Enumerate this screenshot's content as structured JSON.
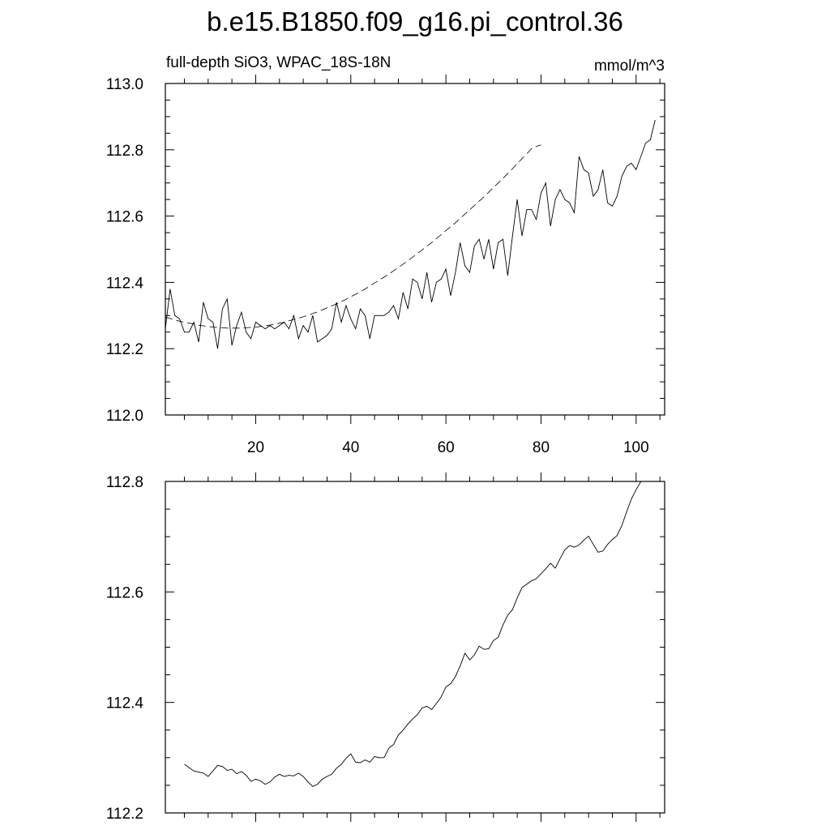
{
  "figure": {
    "title": "b.e15.B1850.f09_g16.pi_control.36"
  },
  "chart_data": [
    {
      "type": "line",
      "subtitle_left": "full-depth SiO3, WPAC_18S-18N",
      "subtitle_right": "mmol/m^3",
      "xlim": [
        1,
        106
      ],
      "ylim": [
        112.0,
        113.0
      ],
      "x_ticks": [
        20,
        40,
        60,
        80,
        100
      ],
      "y_ticks": [
        112.0,
        112.2,
        112.4,
        112.6,
        112.8,
        113.0
      ],
      "y_tick_labels": [
        "112.0",
        "112.2",
        "112.4",
        "112.6",
        "112.8",
        "113.0"
      ],
      "grid": false,
      "series": [
        {
          "style": "solid",
          "x_start": 1,
          "values": [
            112.26,
            112.38,
            112.3,
            112.29,
            112.25,
            112.25,
            112.28,
            112.22,
            112.34,
            112.29,
            112.28,
            112.2,
            112.32,
            112.35,
            112.21,
            112.27,
            112.31,
            112.25,
            112.23,
            112.28,
            112.27,
            112.26,
            112.27,
            112.26,
            112.27,
            112.28,
            112.26,
            112.3,
            112.23,
            112.27,
            112.25,
            112.3,
            112.22,
            112.23,
            112.24,
            112.26,
            112.34,
            112.28,
            112.33,
            112.29,
            112.26,
            112.32,
            112.3,
            112.23,
            112.3,
            112.3,
            112.3,
            112.31,
            112.33,
            112.29,
            112.37,
            112.32,
            112.41,
            112.4,
            112.35,
            112.43,
            112.34,
            112.4,
            112.41,
            112.44,
            112.36,
            112.43,
            112.52,
            112.45,
            112.43,
            112.51,
            112.53,
            112.47,
            112.53,
            112.44,
            112.52,
            112.53,
            112.42,
            112.54,
            112.65,
            112.54,
            112.62,
            112.62,
            112.59,
            112.67,
            112.7,
            112.57,
            112.65,
            112.68,
            112.65,
            112.64,
            112.61,
            112.78,
            112.74,
            112.73,
            112.66,
            112.68,
            112.74,
            112.64,
            112.63,
            112.66,
            112.72,
            112.75,
            112.76,
            112.74,
            112.78,
            112.82,
            112.83,
            112.89
          ]
        },
        {
          "style": "dashed",
          "x_start": 1,
          "values": [
            112.295,
            112.291,
            112.287,
            112.283,
            112.28,
            112.277,
            112.274,
            112.271,
            112.269,
            112.267,
            112.265,
            112.264,
            112.263,
            112.262,
            112.262,
            112.262,
            112.262,
            112.263,
            112.264,
            112.265,
            112.267,
            112.269,
            112.271,
            112.274,
            112.277,
            112.28,
            112.284,
            112.288,
            112.292,
            112.296,
            112.301,
            112.306,
            112.311,
            112.317,
            112.323,
            112.329,
            112.335,
            112.342,
            112.349,
            112.357,
            112.364,
            112.372,
            112.38,
            112.389,
            112.398,
            112.407,
            112.416,
            112.425,
            112.435,
            112.445,
            112.455,
            112.465,
            112.476,
            112.487,
            112.498,
            112.509,
            112.52,
            112.532,
            112.544,
            112.556,
            112.568,
            112.58,
            112.593,
            112.606,
            112.619,
            112.632,
            112.645,
            112.658,
            112.672,
            112.686,
            112.7,
            112.714,
            112.728,
            112.743,
            112.758,
            112.773,
            112.788,
            112.803,
            112.81,
            112.815
          ]
        }
      ]
    },
    {
      "type": "line",
      "xlim": [
        1,
        106
      ],
      "ylim": [
        112.2,
        112.8
      ],
      "y_ticks": [
        112.2,
        112.4,
        112.6,
        112.8
      ],
      "y_tick_labels": [
        "112.2",
        "112.4",
        "112.6",
        "112.8"
      ],
      "grid": false,
      "series": [
        {
          "style": "solid",
          "x_start": 5,
          "values": [
            112.288,
            112.282,
            112.276,
            112.274,
            112.272,
            112.266,
            112.276,
            112.286,
            112.284,
            112.277,
            112.279,
            112.271,
            112.275,
            112.268,
            112.257,
            112.261,
            112.258,
            112.252,
            112.256,
            112.265,
            112.27,
            112.266,
            112.268,
            112.267,
            112.272,
            112.266,
            112.256,
            112.248,
            112.252,
            112.261,
            112.266,
            112.27,
            112.281,
            112.288,
            112.299,
            112.307,
            112.292,
            112.291,
            112.296,
            112.292,
            112.302,
            112.3,
            112.3,
            112.317,
            112.324,
            112.341,
            112.35,
            112.361,
            112.37,
            112.378,
            112.39,
            112.393,
            112.387,
            112.398,
            112.41,
            112.428,
            112.434,
            112.447,
            112.466,
            112.489,
            112.477,
            112.486,
            112.502,
            112.496,
            112.497,
            112.512,
            112.518,
            112.54,
            112.558,
            112.568,
            112.589,
            112.608,
            112.614,
            112.62,
            112.624,
            112.633,
            112.642,
            112.652,
            112.643,
            112.66,
            112.676,
            112.684,
            112.681,
            112.685,
            112.694,
            112.701,
            112.686,
            112.672,
            112.674,
            112.686,
            112.695,
            112.702,
            112.72,
            112.745,
            112.768,
            112.785,
            112.8
          ]
        }
      ]
    }
  ]
}
